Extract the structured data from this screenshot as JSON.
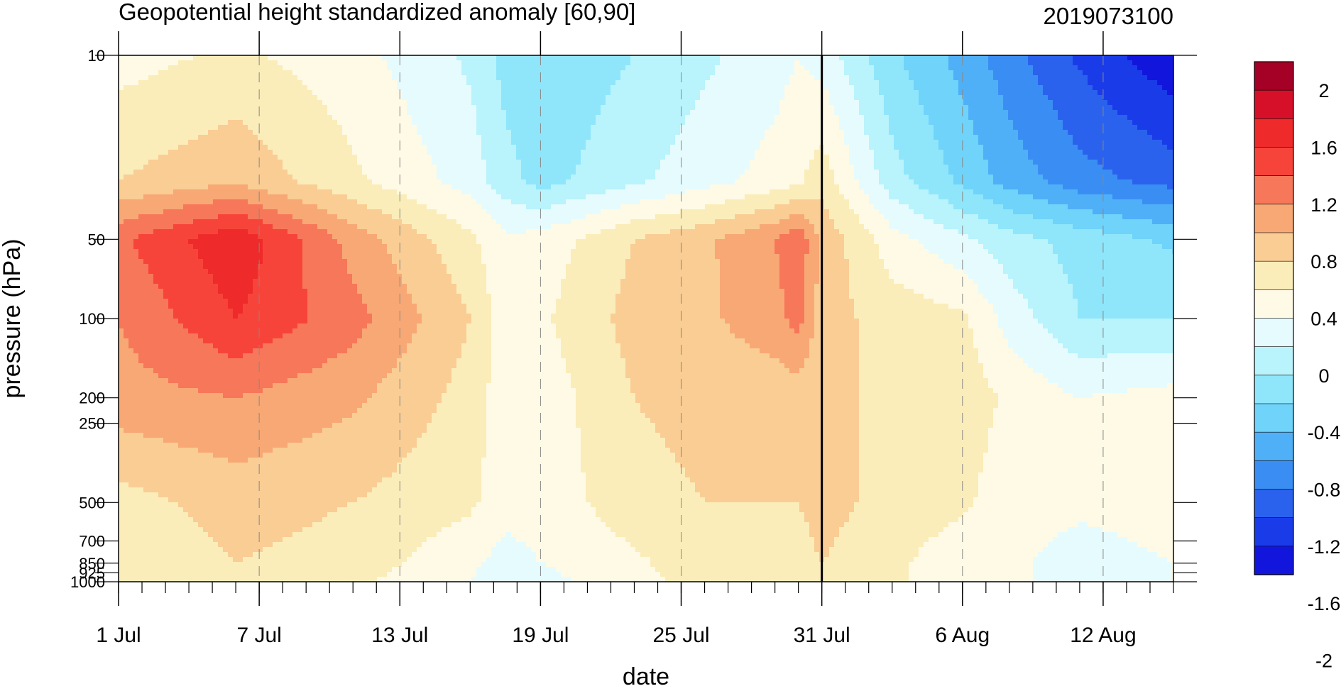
{
  "chart_data": {
    "type": "heatmap",
    "title": "Geopotential height standardized anomaly [60,90]",
    "run_label": "2019073100",
    "xlabel": "date",
    "ylabel": "pressure (hPa)",
    "x_ticks": [
      "1 Jul",
      "7 Jul",
      "13 Jul",
      "19 Jul",
      "25 Jul",
      "31 Jul",
      "6 Aug",
      "12 Aug"
    ],
    "x_range_days": [
      0,
      45
    ],
    "y_ticks": [
      "10",
      "50",
      "100",
      "200",
      "250",
      "500",
      "700",
      "850",
      "925",
      "1000"
    ],
    "y_scale": "log-pressure",
    "forecast_start": "31 Jul",
    "colorbar": {
      "labels": [
        "2",
        "1.6",
        "1.2",
        "0.8",
        "0.4",
        "0",
        "-0.4",
        "-0.8",
        "-1.2",
        "-1.6",
        "-2"
      ],
      "colors": [
        "#a50026",
        "#d7102a",
        "#ee2a2a",
        "#f7443a",
        "#f7775a",
        "#f8a875",
        "#f9cd94",
        "#fbedb9",
        "#fefae5",
        "#e6fbfd",
        "#b9f3fc",
        "#8fe6fb",
        "#6fd3fa",
        "#4fb0f7",
        "#3a8ef3",
        "#2a62ee",
        "#1a3ce8",
        "#1216dc"
      ]
    },
    "anomaly_grid": {
      "days": [
        0,
        5,
        10,
        15,
        16.5,
        18,
        22,
        25,
        28,
        29,
        30,
        33,
        36,
        38,
        41,
        45
      ],
      "levels_hPa": [
        10,
        30,
        50,
        100,
        200,
        500,
        850,
        1000
      ],
      "values": [
        [
          0.15,
          0.3,
          0.1,
          -0.3,
          -0.6,
          -0.7,
          -0.5,
          -0.3,
          -0.1,
          0.0,
          -0.1,
          -0.7,
          -1.1,
          -1.4,
          -1.8,
          -2.2
        ],
        [
          0.5,
          0.7,
          0.3,
          -0.1,
          -0.4,
          -0.6,
          -0.3,
          -0.1,
          0.1,
          0.2,
          0.4,
          -0.4,
          -0.8,
          -1.1,
          -1.4,
          -1.6
        ],
        [
          1.2,
          1.7,
          0.9,
          0.3,
          0.05,
          0.1,
          0.5,
          0.7,
          1.0,
          1.2,
          0.7,
          0.1,
          -0.2,
          -0.4,
          -0.6,
          -0.8
        ],
        [
          1.0,
          1.5,
          1.1,
          0.5,
          0.1,
          0.2,
          0.6,
          0.7,
          0.9,
          1.1,
          0.6,
          0.4,
          0.3,
          -0.1,
          -0.5,
          -0.5
        ],
        [
          0.9,
          1.0,
          0.8,
          0.4,
          0.1,
          0.1,
          0.5,
          0.6,
          0.6,
          0.6,
          0.5,
          0.5,
          0.4,
          0.2,
          0.0,
          0.1
        ],
        [
          0.4,
          0.6,
          0.5,
          0.3,
          0.1,
          0.1,
          0.4,
          0.5,
          0.5,
          0.5,
          0.6,
          0.4,
          0.3,
          0.1,
          0.05,
          0.1
        ],
        [
          0.3,
          0.5,
          0.4,
          0.05,
          -0.1,
          0.0,
          0.2,
          0.4,
          0.3,
          0.4,
          0.5,
          0.3,
          0.1,
          0.05,
          -0.1,
          0.0
        ],
        [
          0.25,
          0.45,
          0.3,
          0.0,
          -0.2,
          -0.1,
          0.2,
          0.3,
          0.3,
          0.3,
          0.5,
          0.3,
          0.1,
          0.05,
          -0.1,
          0.0
        ]
      ]
    }
  }
}
